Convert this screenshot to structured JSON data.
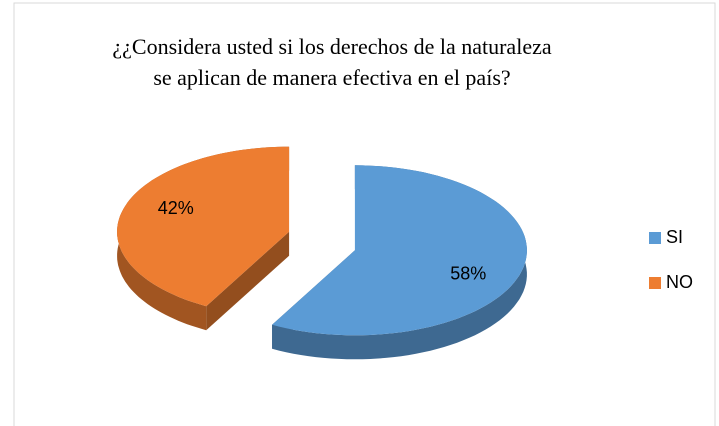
{
  "chart_data": {
    "type": "pie",
    "title": [
      "¿¿Considera usted si los derechos de la naturaleza",
      "se aplican de manera efectiva en el país?"
    ],
    "categories": [
      "SI",
      "NO"
    ],
    "values": [
      58,
      42
    ],
    "value_labels": [
      "58%",
      "42%"
    ],
    "colors": [
      "#5b9bd5",
      "#ed7d31"
    ],
    "legend": "right"
  }
}
